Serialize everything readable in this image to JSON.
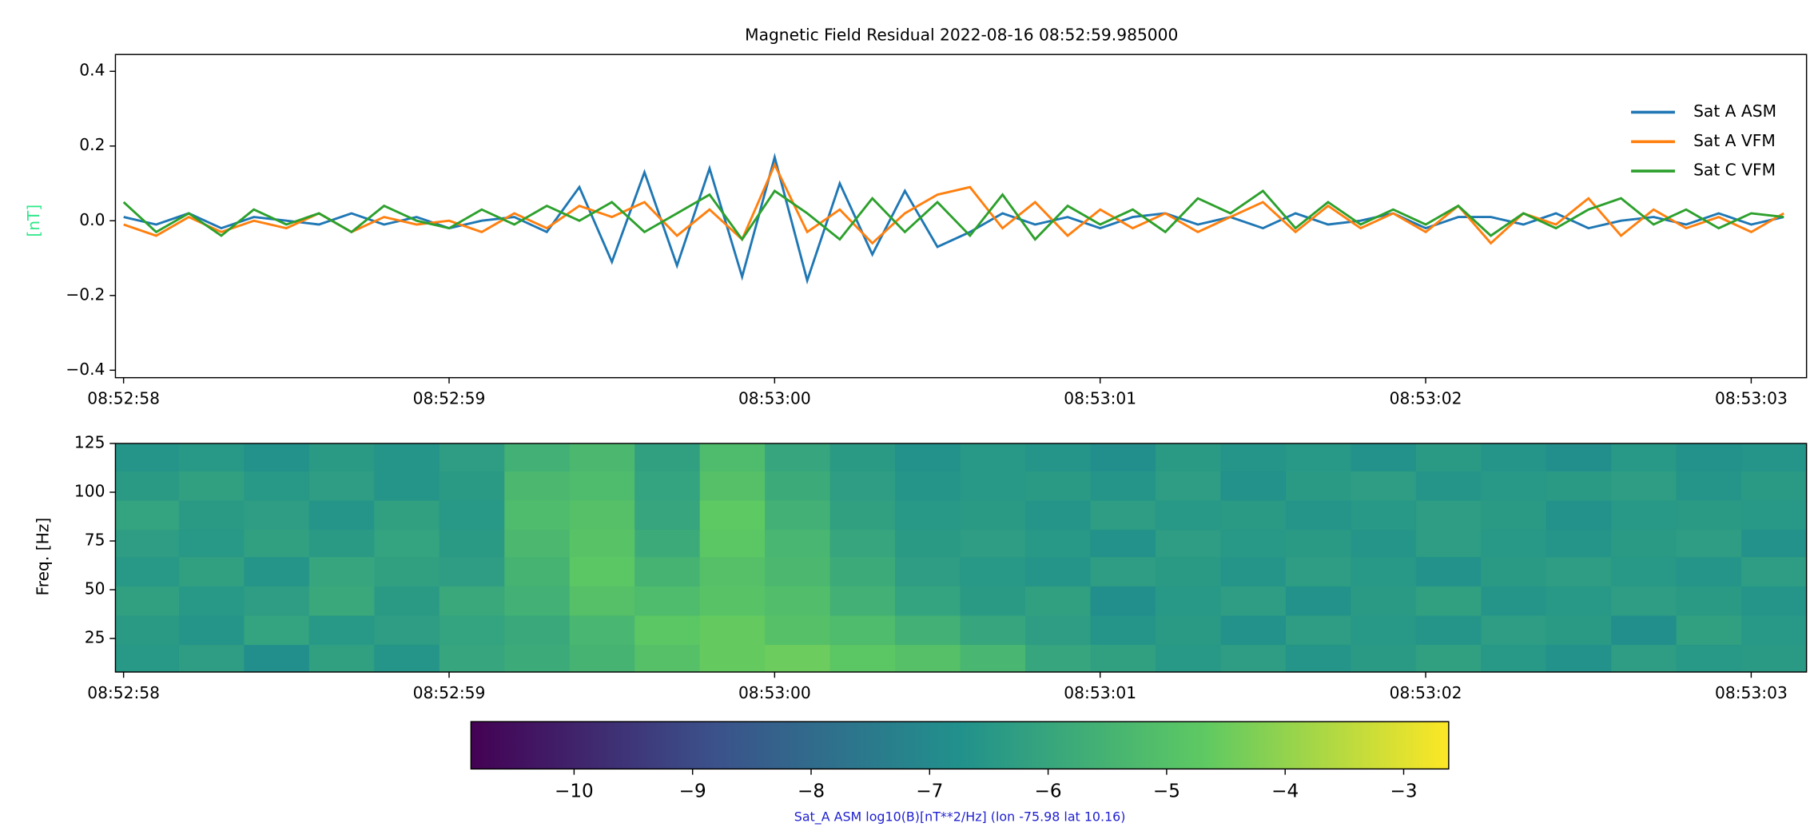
{
  "chart_data": [
    {
      "type": "line",
      "title": "Magnetic Field Residual 2022-08-16 08:52:59.985000",
      "ylabel": "[nT]",
      "ylabel_color": "#2ee88a",
      "x": [
        "08:52:58.0",
        "08:52:58.1",
        "08:52:58.2",
        "08:52:58.3",
        "08:52:58.4",
        "08:52:58.5",
        "08:52:58.6",
        "08:52:58.7",
        "08:52:58.8",
        "08:52:58.9",
        "08:52:59.0",
        "08:52:59.1",
        "08:52:59.2",
        "08:52:59.3",
        "08:52:59.4",
        "08:52:59.5",
        "08:52:59.6",
        "08:52:59.7",
        "08:52:59.8",
        "08:52:59.9",
        "08:53:00.0",
        "08:53:00.1",
        "08:53:00.2",
        "08:53:00.3",
        "08:53:00.4",
        "08:53:00.5",
        "08:53:00.6",
        "08:53:00.7",
        "08:53:00.8",
        "08:53:00.9",
        "08:53:01.0",
        "08:53:01.1",
        "08:53:01.2",
        "08:53:01.3",
        "08:53:01.4",
        "08:53:01.5",
        "08:53:01.6",
        "08:53:01.7",
        "08:53:01.8",
        "08:53:01.9",
        "08:53:02.0",
        "08:53:02.1",
        "08:53:02.2",
        "08:53:02.3",
        "08:53:02.4",
        "08:53:02.5",
        "08:53:02.6",
        "08:53:02.7",
        "08:53:02.8",
        "08:53:02.9",
        "08:53:03.0",
        "08:53:03.1"
      ],
      "series": [
        {
          "name": "Sat A ASM",
          "color": "#1f77b4",
          "values": [
            0.01,
            -0.01,
            0.02,
            -0.02,
            0.01,
            0.0,
            -0.01,
            0.02,
            -0.01,
            0.01,
            -0.02,
            0.0,
            0.01,
            -0.03,
            0.09,
            -0.11,
            0.13,
            -0.12,
            0.14,
            -0.15,
            0.17,
            -0.16,
            0.1,
            -0.09,
            0.08,
            -0.07,
            -0.03,
            0.02,
            -0.01,
            0.01,
            -0.02,
            0.01,
            0.02,
            -0.01,
            0.01,
            -0.02,
            0.02,
            -0.01,
            0.0,
            0.02,
            -0.02,
            0.01,
            0.01,
            -0.01,
            0.02,
            -0.02,
            0.0,
            0.01,
            -0.01,
            0.02,
            -0.01,
            0.01
          ]
        },
        {
          "name": "Sat A VFM",
          "color": "#ff7f0e",
          "values": [
            -0.01,
            -0.04,
            0.01,
            -0.03,
            0.0,
            -0.02,
            0.02,
            -0.03,
            0.01,
            -0.01,
            0.0,
            -0.03,
            0.02,
            -0.02,
            0.04,
            0.01,
            0.05,
            -0.04,
            0.03,
            -0.05,
            0.15,
            -0.03,
            0.03,
            -0.06,
            0.02,
            0.07,
            0.09,
            -0.02,
            0.05,
            -0.04,
            0.03,
            -0.02,
            0.02,
            -0.03,
            0.01,
            0.05,
            -0.03,
            0.04,
            -0.02,
            0.02,
            -0.03,
            0.04,
            -0.06,
            0.02,
            -0.01,
            0.06,
            -0.04,
            0.03,
            -0.02,
            0.01,
            -0.03,
            0.02
          ]
        },
        {
          "name": "Sat C VFM",
          "color": "#2ca02c",
          "values": [
            0.05,
            -0.03,
            0.02,
            -0.04,
            0.03,
            -0.01,
            0.02,
            -0.03,
            0.04,
            0.0,
            -0.02,
            0.03,
            -0.01,
            0.04,
            0.0,
            0.05,
            -0.03,
            0.02,
            0.07,
            -0.05,
            0.08,
            0.02,
            -0.05,
            0.06,
            -0.03,
            0.05,
            -0.04,
            0.07,
            -0.05,
            0.04,
            -0.01,
            0.03,
            -0.03,
            0.06,
            0.02,
            0.08,
            -0.02,
            0.05,
            -0.01,
            0.03,
            -0.01,
            0.04,
            -0.04,
            0.02,
            -0.02,
            0.03,
            0.06,
            -0.01,
            0.03,
            -0.02,
            0.02,
            0.01
          ]
        }
      ],
      "xlim": [
        "08:52:57.975",
        "08:53:03.170"
      ],
      "xticks": [
        "08:52:58",
        "08:52:59",
        "08:53:00",
        "08:53:01",
        "08:53:02",
        "08:53:03"
      ],
      "ylim": [
        -0.42,
        0.445
      ],
      "yticks": [
        {
          "value": -0.4,
          "label": "−0.4"
        },
        {
          "value": -0.2,
          "label": "−0.2"
        },
        {
          "value": 0,
          "label": "0.0"
        },
        0.2,
        0.4
      ],
      "legend": "upper right"
    },
    {
      "type": "heatmap",
      "ylabel": "Freq. [Hz]",
      "xbins": [
        "08:52:57.97",
        "08:52:58.17",
        "08:52:58.37",
        "08:52:58.57",
        "08:52:58.77",
        "08:52:58.97",
        "08:52:59.17",
        "08:52:59.37",
        "08:52:59.57",
        "08:52:59.77",
        "08:52:59.97",
        "08:53:00.17",
        "08:53:00.37",
        "08:53:00.57",
        "08:53:00.77",
        "08:53:00.97",
        "08:53:01.17",
        "08:53:01.37",
        "08:53:01.57",
        "08:53:01.77",
        "08:53:01.97",
        "08:53:02.17",
        "08:53:02.37",
        "08:53:02.57",
        "08:53:02.77",
        "08:53:02.97",
        "08:53:03.17"
      ],
      "ybins": [
        7.8,
        22,
        37,
        52,
        67,
        81,
        96,
        111,
        125
      ],
      "z": [
        [
          -6.5,
          -6.3,
          -6.8,
          -6.2,
          -6.6,
          -6.0,
          -5.8,
          -5.5,
          -5.0,
          -4.6,
          -4.5,
          -4.8,
          -5.0,
          -5.4,
          -6.0,
          -6.2,
          -6.5,
          -6.3,
          -6.6,
          -6.4,
          -6.2,
          -6.5,
          -6.7,
          -6.3,
          -6.5,
          -6.4
        ],
        [
          -6.4,
          -6.6,
          -6.1,
          -6.5,
          -6.3,
          -6.1,
          -5.9,
          -5.4,
          -4.8,
          -4.6,
          -5.0,
          -5.2,
          -5.6,
          -6.0,
          -6.3,
          -6.6,
          -6.4,
          -6.7,
          -6.3,
          -6.5,
          -6.6,
          -6.3,
          -6.4,
          -6.8,
          -6.2,
          -6.5
        ],
        [
          -6.2,
          -6.5,
          -6.3,
          -5.9,
          -6.4,
          -5.9,
          -5.6,
          -5.0,
          -5.2,
          -4.9,
          -5.1,
          -5.6,
          -6.1,
          -6.4,
          -6.2,
          -6.8,
          -6.5,
          -6.3,
          -6.7,
          -6.4,
          -6.2,
          -6.6,
          -6.5,
          -6.3,
          -6.4,
          -6.6
        ],
        [
          -6.5,
          -6.2,
          -6.6,
          -6.0,
          -6.2,
          -6.3,
          -5.5,
          -4.8,
          -5.5,
          -5.0,
          -5.3,
          -5.8,
          -6.3,
          -6.5,
          -6.6,
          -6.3,
          -6.4,
          -6.6,
          -6.3,
          -6.5,
          -6.7,
          -6.4,
          -6.3,
          -6.5,
          -6.6,
          -6.3
        ],
        [
          -6.3,
          -6.5,
          -6.2,
          -6.4,
          -6.1,
          -6.4,
          -5.3,
          -4.9,
          -5.8,
          -4.8,
          -5.4,
          -6.0,
          -6.4,
          -6.3,
          -6.5,
          -6.7,
          -6.3,
          -6.5,
          -6.4,
          -6.6,
          -6.3,
          -6.5,
          -6.6,
          -6.4,
          -6.3,
          -6.7
        ],
        [
          -6.1,
          -6.4,
          -6.3,
          -6.6,
          -6.2,
          -6.5,
          -5.2,
          -5.0,
          -6.0,
          -4.7,
          -5.6,
          -6.2,
          -6.5,
          -6.4,
          -6.6,
          -6.3,
          -6.5,
          -6.4,
          -6.6,
          -6.5,
          -6.3,
          -6.4,
          -6.7,
          -6.5,
          -6.4,
          -6.5
        ],
        [
          -6.4,
          -6.2,
          -6.5,
          -6.3,
          -6.6,
          -6.4,
          -5.3,
          -5.2,
          -6.1,
          -5.0,
          -5.8,
          -6.3,
          -6.6,
          -6.5,
          -6.4,
          -6.6,
          -6.3,
          -6.7,
          -6.4,
          -6.3,
          -6.6,
          -6.5,
          -6.4,
          -6.3,
          -6.6,
          -6.4
        ],
        [
          -6.6,
          -6.5,
          -6.7,
          -6.4,
          -6.6,
          -6.3,
          -5.6,
          -5.3,
          -6.2,
          -5.2,
          -6.0,
          -6.4,
          -6.7,
          -6.5,
          -6.6,
          -6.8,
          -6.4,
          -6.6,
          -6.5,
          -6.7,
          -6.4,
          -6.6,
          -6.8,
          -6.5,
          -6.7,
          -6.6
        ]
      ],
      "xlim": [
        "08:52:57.975",
        "08:53:03.170"
      ],
      "xticks": [
        "08:52:58",
        "08:52:59",
        "08:53:00",
        "08:53:01",
        "08:53:02",
        "08:53:03"
      ],
      "ylim": [
        7.8,
        125
      ],
      "yticks": [
        25,
        50,
        75,
        100,
        125
      ],
      "colormap": "viridis",
      "clim": [
        -10.87,
        -2.62
      ],
      "colorbar_ticks": [
        {
          "value": -10,
          "label": "−10"
        },
        {
          "value": -9,
          "label": "−9"
        },
        {
          "value": -8,
          "label": "−8"
        },
        {
          "value": -7,
          "label": "−7"
        },
        {
          "value": -6,
          "label": "−6"
        },
        {
          "value": -5,
          "label": "−5"
        },
        {
          "value": -4,
          "label": "−4"
        },
        {
          "value": -3,
          "label": "−3"
        }
      ],
      "colorbar_label": "Sat_A ASM log10(B)[nT**2/Hz] (lon -75.98 lat 10.16)",
      "colorbar_label_color": "#2020d0"
    }
  ]
}
